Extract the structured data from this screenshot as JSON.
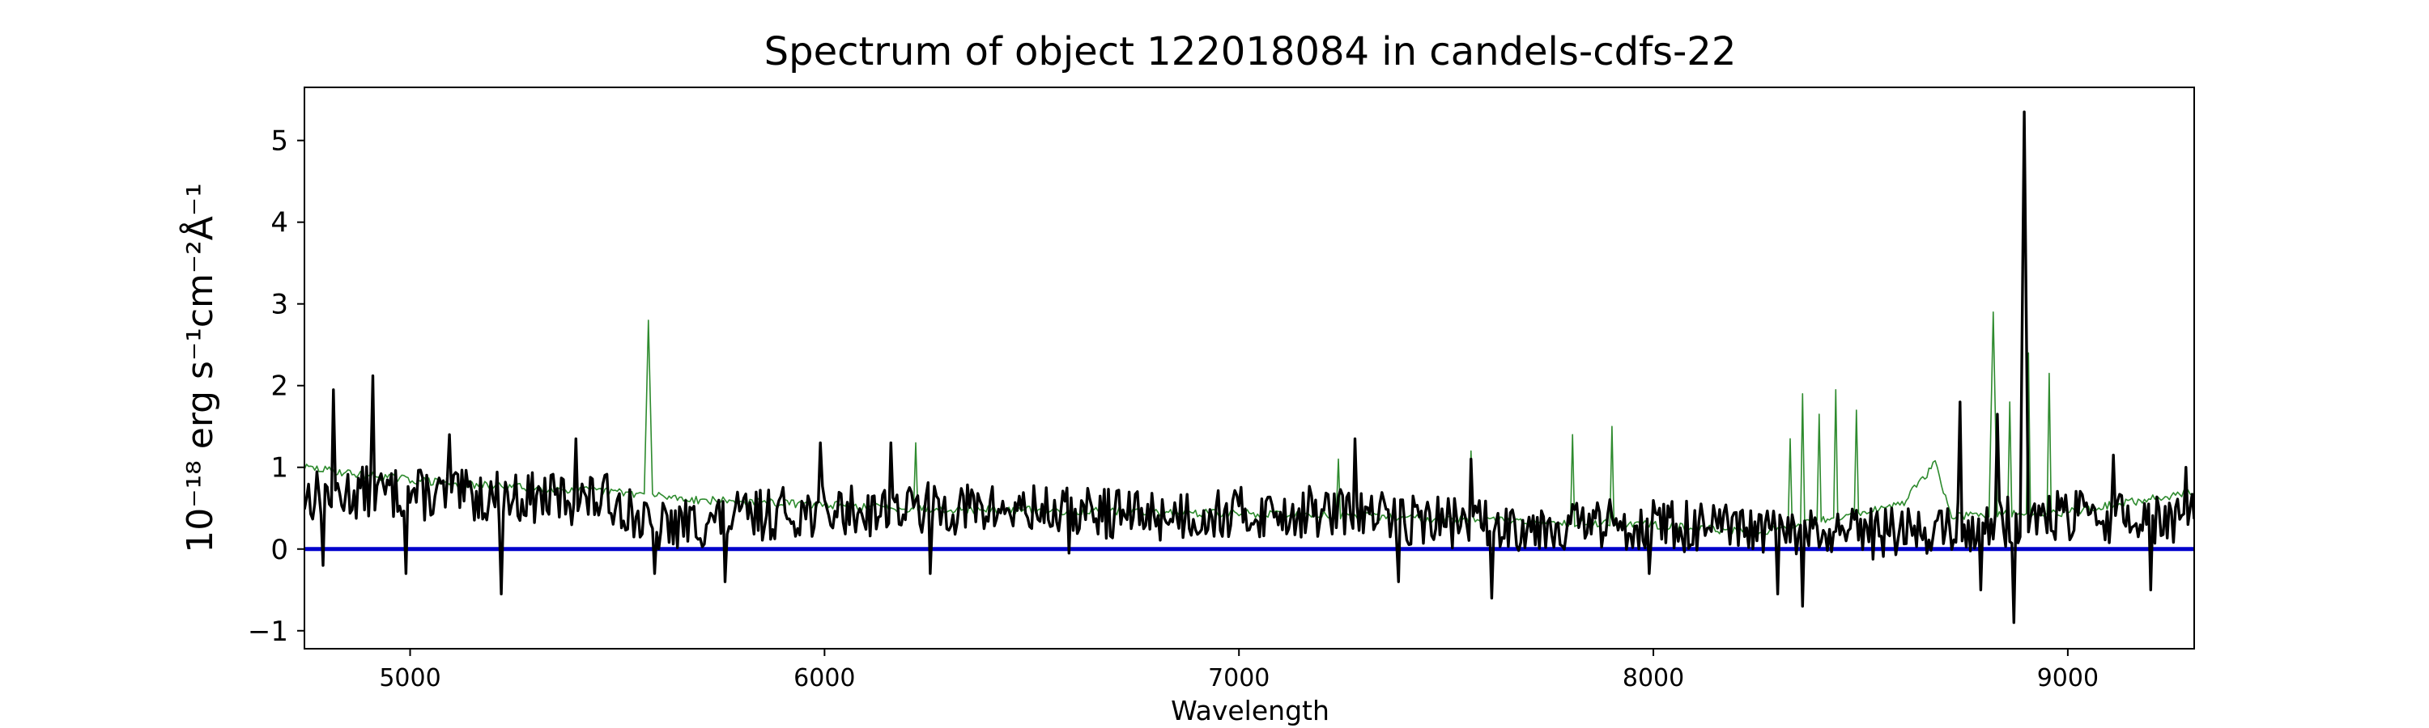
{
  "chart_data": {
    "type": "line",
    "title": "Spectrum of object 122018084 in candels-cdfs-22",
    "xlabel": "Wavelength",
    "ylabel": "10$^{-18}$ erg s$^{-1}$cm$^{-2}$Å$^{-1}$",
    "ylabel_rendered": "10⁻¹⁸ erg s⁻¹cm⁻²Å⁻¹",
    "xlim": [
      4745,
      9305
    ],
    "ylim": [
      -1.22,
      5.65
    ],
    "xticks": [
      5000,
      6000,
      7000,
      8000,
      9000
    ],
    "yticks": [
      -1,
      0,
      1,
      2,
      3,
      4,
      5
    ],
    "grid": false,
    "series": [
      {
        "role": "flux",
        "color": "#000000",
        "x_start": 4745,
        "x_step": 5,
        "noise_seed": 13,
        "noise_amplitude": 0.32,
        "profile": [
          [
            4745,
            0.65
          ],
          [
            4900,
            0.7
          ],
          [
            5100,
            0.65
          ],
          [
            5500,
            0.6
          ],
          [
            5580,
            0.25
          ],
          [
            5900,
            0.45
          ],
          [
            6300,
            0.5
          ],
          [
            6800,
            0.42
          ],
          [
            7200,
            0.45
          ],
          [
            7600,
            0.3
          ],
          [
            8000,
            0.3
          ],
          [
            8400,
            0.15
          ],
          [
            8700,
            0.25
          ],
          [
            9000,
            0.4
          ],
          [
            9305,
            0.35
          ]
        ],
        "features": [
          [
            4790,
            -0.2
          ],
          [
            4815,
            1.95
          ],
          [
            4910,
            2.12
          ],
          [
            4990,
            -0.3
          ],
          [
            5095,
            1.4
          ],
          [
            5220,
            -0.55
          ],
          [
            5400,
            1.35
          ],
          [
            5590,
            -0.3
          ],
          [
            5760,
            -0.4
          ],
          [
            5990,
            1.3
          ],
          [
            6160,
            1.3
          ],
          [
            6255,
            -0.3
          ],
          [
            6590,
            -0.05
          ],
          [
            7280,
            1.35
          ],
          [
            7385,
            -0.4
          ],
          [
            7560,
            1.1
          ],
          [
            7610,
            -0.6
          ],
          [
            7990,
            -0.3
          ],
          [
            8300,
            -0.55
          ],
          [
            8360,
            -0.7
          ],
          [
            8740,
            1.8
          ],
          [
            8790,
            -0.5
          ],
          [
            8830,
            1.65
          ],
          [
            8870,
            -0.9
          ],
          [
            8893,
            5.35
          ],
          [
            9110,
            1.15
          ],
          [
            9200,
            -0.5
          ],
          [
            9285,
            1.0
          ]
        ]
      },
      {
        "role": "model",
        "color": "#2e8b2e",
        "x_start": 4745,
        "x_step": 5,
        "noise_seed": 29,
        "noise_amplitude": 0.05,
        "profile": [
          [
            4745,
            1.0
          ],
          [
            4900,
            0.9
          ],
          [
            5100,
            0.8
          ],
          [
            5500,
            0.7
          ],
          [
            5700,
            0.6
          ],
          [
            6200,
            0.5
          ],
          [
            6800,
            0.45
          ],
          [
            7200,
            0.42
          ],
          [
            7600,
            0.35
          ],
          [
            8000,
            0.3
          ],
          [
            8250,
            0.2
          ],
          [
            8600,
            0.55
          ],
          [
            8680,
            1.05
          ],
          [
            8720,
            0.4
          ],
          [
            9000,
            0.45
          ],
          [
            9305,
            0.7
          ]
        ],
        "features": [
          [
            5575,
            2.8
          ],
          [
            6220,
            1.3
          ],
          [
            7240,
            1.1
          ],
          [
            7560,
            1.2
          ],
          [
            7805,
            1.4
          ],
          [
            7900,
            1.5
          ],
          [
            8330,
            1.35
          ],
          [
            8360,
            1.9
          ],
          [
            8400,
            1.65
          ],
          [
            8440,
            1.95
          ],
          [
            8490,
            1.7
          ],
          [
            8820,
            2.9
          ],
          [
            8860,
            1.8
          ],
          [
            8905,
            2.4
          ],
          [
            8955,
            2.15
          ]
        ]
      },
      {
        "role": "zero line",
        "color": "#0000cc",
        "constant": 0
      }
    ]
  }
}
